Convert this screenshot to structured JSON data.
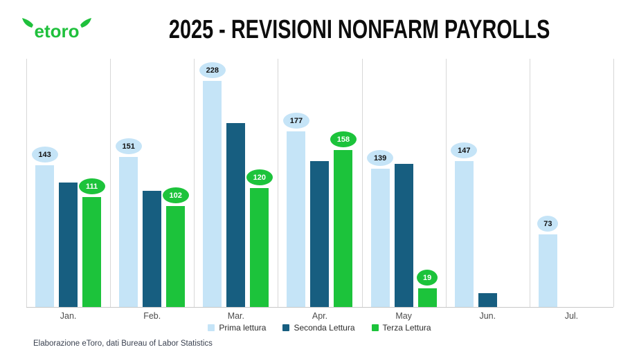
{
  "header": {
    "logo_text": "etoro",
    "logo_color": "#1fc03c",
    "title": "2025 - REVISIONI NONFARM PAYROLLS"
  },
  "legend": {
    "items": [
      {
        "label": "Prima lettura",
        "color": "#c5e4f7"
      },
      {
        "label": "Seconda Lettura",
        "color": "#175e80"
      },
      {
        "label": "Terza Lettura",
        "color": "#1cc33b"
      }
    ]
  },
  "footer": {
    "source_note": "Elaborazione eToro, dati Bureau of Labor Statistics"
  },
  "chart_data": {
    "type": "bar",
    "title": "2025 - REVISIONI NONFARM PAYROLLS",
    "categories": [
      "Jan.",
      "Feb.",
      "Mar.",
      "Apr.",
      "May",
      "Jun.",
      "Jul."
    ],
    "series": [
      {
        "name": "Prima lettura",
        "color": "#c5e4f7",
        "values": [
          143,
          151,
          228,
          177,
          139,
          147,
          73
        ],
        "data_labels": true,
        "label_bg": "#c5e4f7",
        "label_color": "#111111"
      },
      {
        "name": "Seconda Lettura",
        "color": "#175e80",
        "values": [
          125,
          117,
          185,
          147,
          144,
          14,
          null
        ],
        "data_labels": false
      },
      {
        "name": "Terza Lettura",
        "color": "#1cc33b",
        "values": [
          111,
          102,
          120,
          158,
          19,
          null,
          null
        ],
        "data_labels": true,
        "label_bg": "#1cc33b",
        "label_color": "#ffffff"
      }
    ],
    "ylim": [
      0,
      250
    ],
    "grid": "vertical month separators only",
    "legend_position": "bottom-center"
  }
}
